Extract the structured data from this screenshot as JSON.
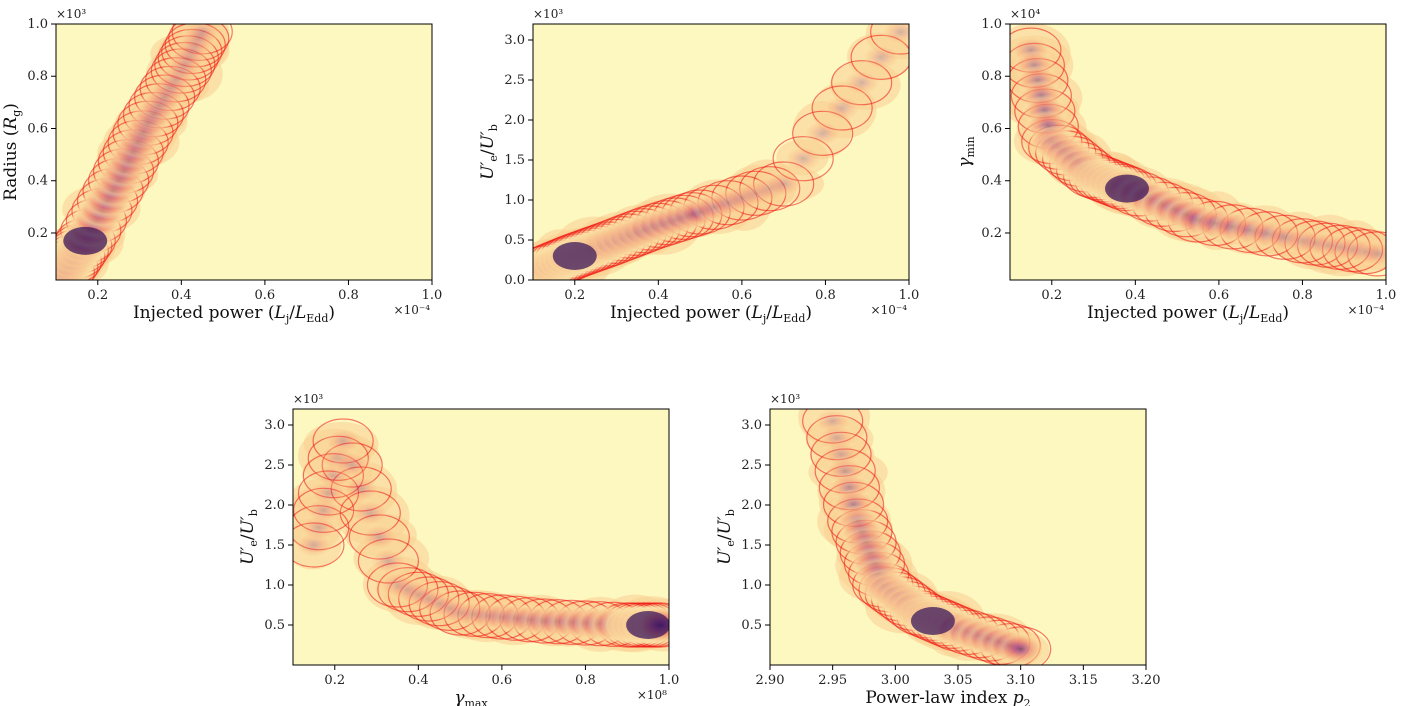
{
  "figure": {
    "colors": {
      "background": "#fdf7c0",
      "blob_light": "#f9cf92",
      "blob_mid": "#ee8670",
      "blob_deep": "#9a3d8e",
      "blob_core": "#3c1a5c",
      "contour": "#ee1111"
    }
  },
  "chart_data": [
    {
      "type": "heatmap",
      "xlabel": "Injected power (L_j/L_Edd)",
      "ylabel": "Radius (R_g)",
      "xlim": [
        0.1,
        1.0
      ],
      "ylim": [
        0.02,
        1.0
      ],
      "x_ticks": [
        0.2,
        0.4,
        0.6,
        0.8,
        1.0
      ],
      "x_tick_labels": [
        "0.2",
        "0.4",
        "0.6",
        "0.8",
        "1.0"
      ],
      "y_ticks": [
        0.2,
        0.4,
        0.6,
        0.8,
        1.0
      ],
      "y_tick_labels": [
        "0.2",
        "0.4",
        "0.6",
        "0.8",
        "1.0"
      ],
      "x_multiplier": "×10⁻⁴",
      "y_multiplier": "×10³",
      "density_ridge": [
        [
          0.12,
          0.05
        ],
        [
          0.17,
          0.17
        ],
        [
          0.25,
          0.4
        ],
        [
          0.32,
          0.62
        ],
        [
          0.4,
          0.82
        ],
        [
          0.45,
          0.97
        ]
      ],
      "peak": [
        0.17,
        0.17
      ]
    },
    {
      "type": "heatmap",
      "xlabel": "Injected power (L_j/L_Edd)",
      "ylabel": "U′e/U′b",
      "xlim": [
        0.1,
        1.0
      ],
      "ylim": [
        0.0,
        3.2
      ],
      "x_ticks": [
        0.2,
        0.4,
        0.6,
        0.8,
        1.0
      ],
      "x_tick_labels": [
        "0.2",
        "0.4",
        "0.6",
        "0.8",
        "1.0"
      ],
      "y_ticks": [
        0.0,
        0.5,
        1.0,
        1.5,
        2.0,
        2.5,
        3.0
      ],
      "y_tick_labels": [
        "0.0",
        "0.5",
        "1.0",
        "1.5",
        "2.0",
        "2.5",
        "3.0"
      ],
      "x_multiplier": "×10⁻⁴",
      "y_multiplier": "×10³",
      "density_ridge": [
        [
          0.13,
          0.15
        ],
        [
          0.2,
          0.3
        ],
        [
          0.28,
          0.45
        ],
        [
          0.38,
          0.65
        ],
        [
          0.5,
          0.85
        ],
        [
          0.7,
          1.2
        ],
        [
          0.98,
          3.1
        ]
      ],
      "peak": [
        0.2,
        0.3
      ]
    },
    {
      "type": "heatmap",
      "xlabel": "Injected power (L_j/L_Edd)",
      "ylabel": "γmin",
      "xlim": [
        0.1,
        1.0
      ],
      "ylim": [
        0.02,
        1.0
      ],
      "x_ticks": [
        0.2,
        0.4,
        0.6,
        0.8,
        1.0
      ],
      "x_tick_labels": [
        "0.2",
        "0.4",
        "0.6",
        "0.8",
        "1.0"
      ],
      "y_ticks": [
        0.2,
        0.4,
        0.6,
        0.8,
        1.0
      ],
      "y_tick_labels": [
        "0.2",
        "0.4",
        "0.6",
        "0.8",
        "1.0"
      ],
      "x_multiplier": "×10⁻⁴",
      "y_multiplier": "×10⁴",
      "density_ridge": [
        [
          0.15,
          0.9
        ],
        [
          0.2,
          0.55
        ],
        [
          0.3,
          0.42
        ],
        [
          0.38,
          0.37
        ],
        [
          0.55,
          0.25
        ],
        [
          0.8,
          0.17
        ],
        [
          0.98,
          0.12
        ]
      ],
      "peak": [
        0.38,
        0.37
      ]
    },
    {
      "type": "heatmap",
      "xlabel": "γmax",
      "ylabel": "U′e/U′b",
      "xlim": [
        0.1,
        1.0
      ],
      "ylim": [
        0.0,
        3.2
      ],
      "x_ticks": [
        0.2,
        0.4,
        0.6,
        0.8,
        1.0
      ],
      "x_tick_labels": [
        "0.2",
        "0.4",
        "0.6",
        "0.8",
        "1.0"
      ],
      "y_ticks": [
        0.5,
        1.0,
        1.5,
        2.0,
        2.5,
        3.0
      ],
      "y_tick_labels": [
        "0.5",
        "1.0",
        "1.5",
        "2.0",
        "2.5",
        "3.0"
      ],
      "x_multiplier": "×10⁸",
      "y_multiplier": "×10³",
      "density_ridge": [
        [
          0.15,
          1.5
        ],
        [
          0.22,
          2.8
        ],
        [
          0.35,
          1.0
        ],
        [
          0.5,
          0.65
        ],
        [
          0.7,
          0.55
        ],
        [
          0.9,
          0.5
        ],
        [
          0.98,
          0.5
        ]
      ],
      "peak": [
        0.95,
        0.5
      ]
    },
    {
      "type": "heatmap",
      "xlabel": "Power-law index p2",
      "ylabel": "U′e/U′b",
      "xlim": [
        2.9,
        3.2
      ],
      "ylim": [
        0.0,
        3.2
      ],
      "x_ticks": [
        2.9,
        2.95,
        3.0,
        3.05,
        3.1,
        3.15,
        3.2
      ],
      "x_tick_labels": [
        "2.90",
        "2.95",
        "3.00",
        "3.05",
        "3.10",
        "3.15",
        "3.20"
      ],
      "y_ticks": [
        0.5,
        1.0,
        1.5,
        2.0,
        2.5,
        3.0
      ],
      "y_tick_labels": [
        "0.5",
        "1.0",
        "1.5",
        "2.0",
        "2.5",
        "3.0"
      ],
      "x_multiplier": "",
      "y_multiplier": "×10³",
      "density_ridge": [
        [
          2.95,
          3.05
        ],
        [
          2.97,
          1.8
        ],
        [
          2.99,
          1.0
        ],
        [
          3.02,
          0.65
        ],
        [
          3.05,
          0.45
        ],
        [
          3.1,
          0.2
        ]
      ],
      "peak": [
        3.03,
        0.55
      ]
    }
  ]
}
